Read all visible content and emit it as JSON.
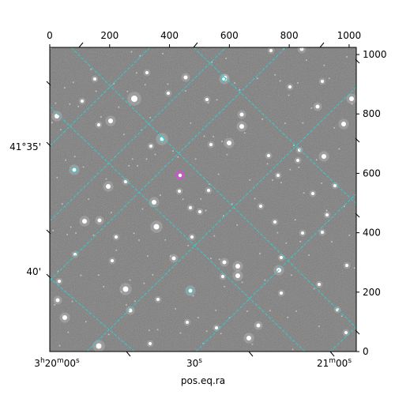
{
  "figure": {
    "xlabel": "pos.eq.ra",
    "ylabel": "",
    "top_ticks": [
      "0",
      "200",
      "400",
      "600",
      "800",
      "1000"
    ],
    "right_ticks": [
      "0",
      "200",
      "400",
      "600",
      "800",
      "1000"
    ],
    "bottom_ticks": [
      "3h20m00s",
      "30s",
      "21m00s"
    ],
    "left_ticks": [
      "41°35'",
      "40'"
    ],
    "colors": {
      "grid": "#33cccc",
      "marker": "#ff33ff",
      "axis": "#000000",
      "background": "#ffffff",
      "image_base": "#4a4a4a"
    }
  }
}
